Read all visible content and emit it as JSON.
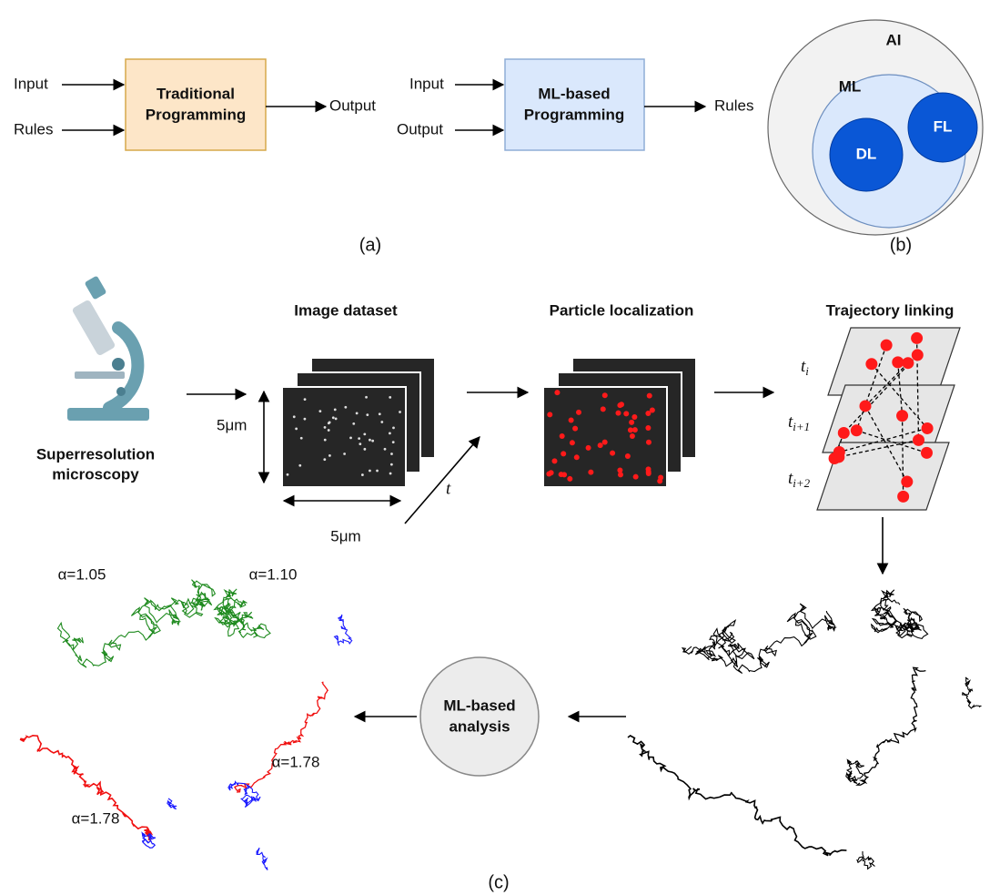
{
  "panel_a": {
    "traditional": {
      "inputs": [
        "Input",
        "Rules"
      ],
      "box": [
        "Traditional",
        "Programming"
      ],
      "output": "Output"
    },
    "ml_based": {
      "inputs": [
        "Input",
        "Output"
      ],
      "box": [
        "ML-based",
        "Programming"
      ],
      "output": "Rules"
    },
    "caption": "(a)"
  },
  "panel_b": {
    "outer": "AI",
    "middle": "ML",
    "inner": [
      "DL",
      "FL"
    ],
    "caption": "(b)"
  },
  "panel_c": {
    "microscope": [
      "Superresolution",
      "microscopy"
    ],
    "image_dataset": {
      "title": "Image dataset",
      "height_label": "5μm",
      "width_label": "5μm",
      "time_label": "t"
    },
    "particle_localization": {
      "title": "Particle localization"
    },
    "trajectory_linking": {
      "title": "Trajectory linking",
      "frames": [
        {
          "base": "t",
          "sub": "i"
        },
        {
          "base": "t",
          "sub": "i+1"
        },
        {
          "base": "t",
          "sub": "i+2"
        }
      ]
    },
    "analysis": [
      "ML-based",
      "analysis"
    ],
    "exponents": [
      "α=1.05",
      "α=1.10",
      "α=1.78",
      "α=1.78"
    ],
    "caption": "(c)"
  }
}
